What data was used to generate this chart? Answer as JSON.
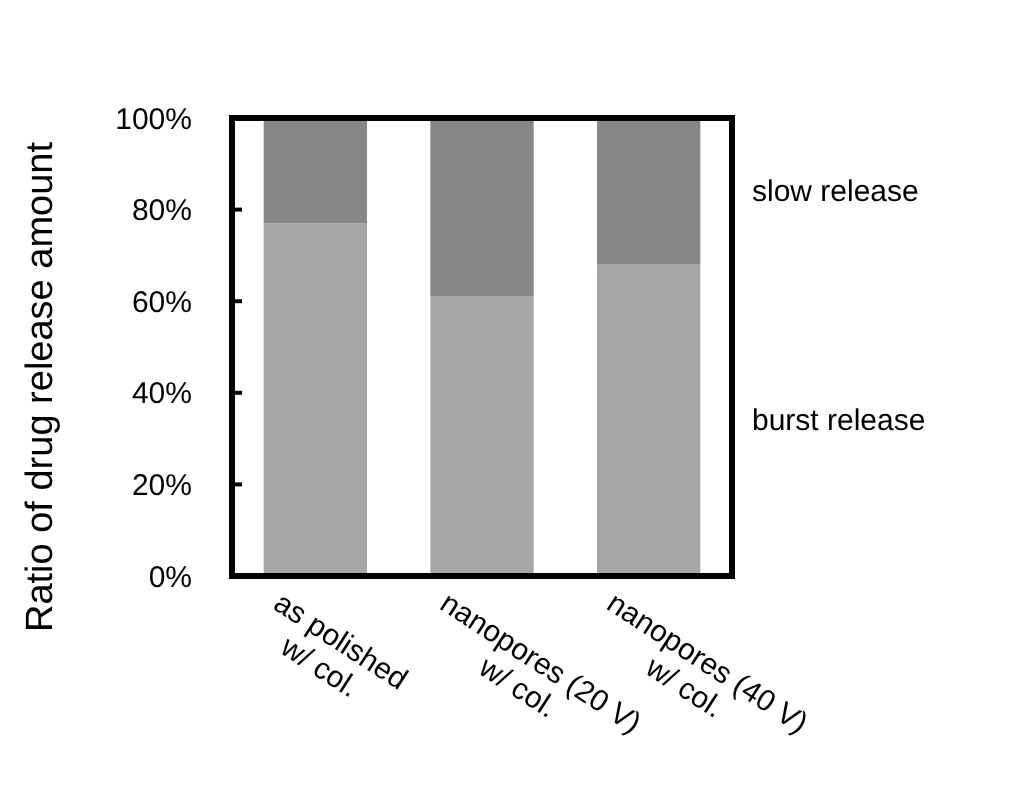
{
  "chart_data": {
    "type": "bar",
    "stacked": true,
    "ylabel": "Ratio of drug release amount",
    "categories": [
      "as polished\nw/ col.",
      "nanopores (20 V)\nw/ col.",
      "nanopores (40 V)\nw/ col."
    ],
    "series": [
      {
        "name": "burst release",
        "color": "#a6a6a6",
        "values": [
          77,
          61,
          68
        ]
      },
      {
        "name": "slow release",
        "color": "#878787",
        "values": [
          23,
          39,
          32
        ]
      }
    ],
    "ylim": [
      0,
      100
    ],
    "yticks": [
      {
        "value": 0,
        "label": "0%"
      },
      {
        "value": 20,
        "label": "20%"
      },
      {
        "value": 40,
        "label": "40%"
      },
      {
        "value": 60,
        "label": "60%"
      },
      {
        "value": 80,
        "label": "80%"
      },
      {
        "value": 100,
        "label": "100%"
      }
    ],
    "grid": false,
    "legend": false
  }
}
